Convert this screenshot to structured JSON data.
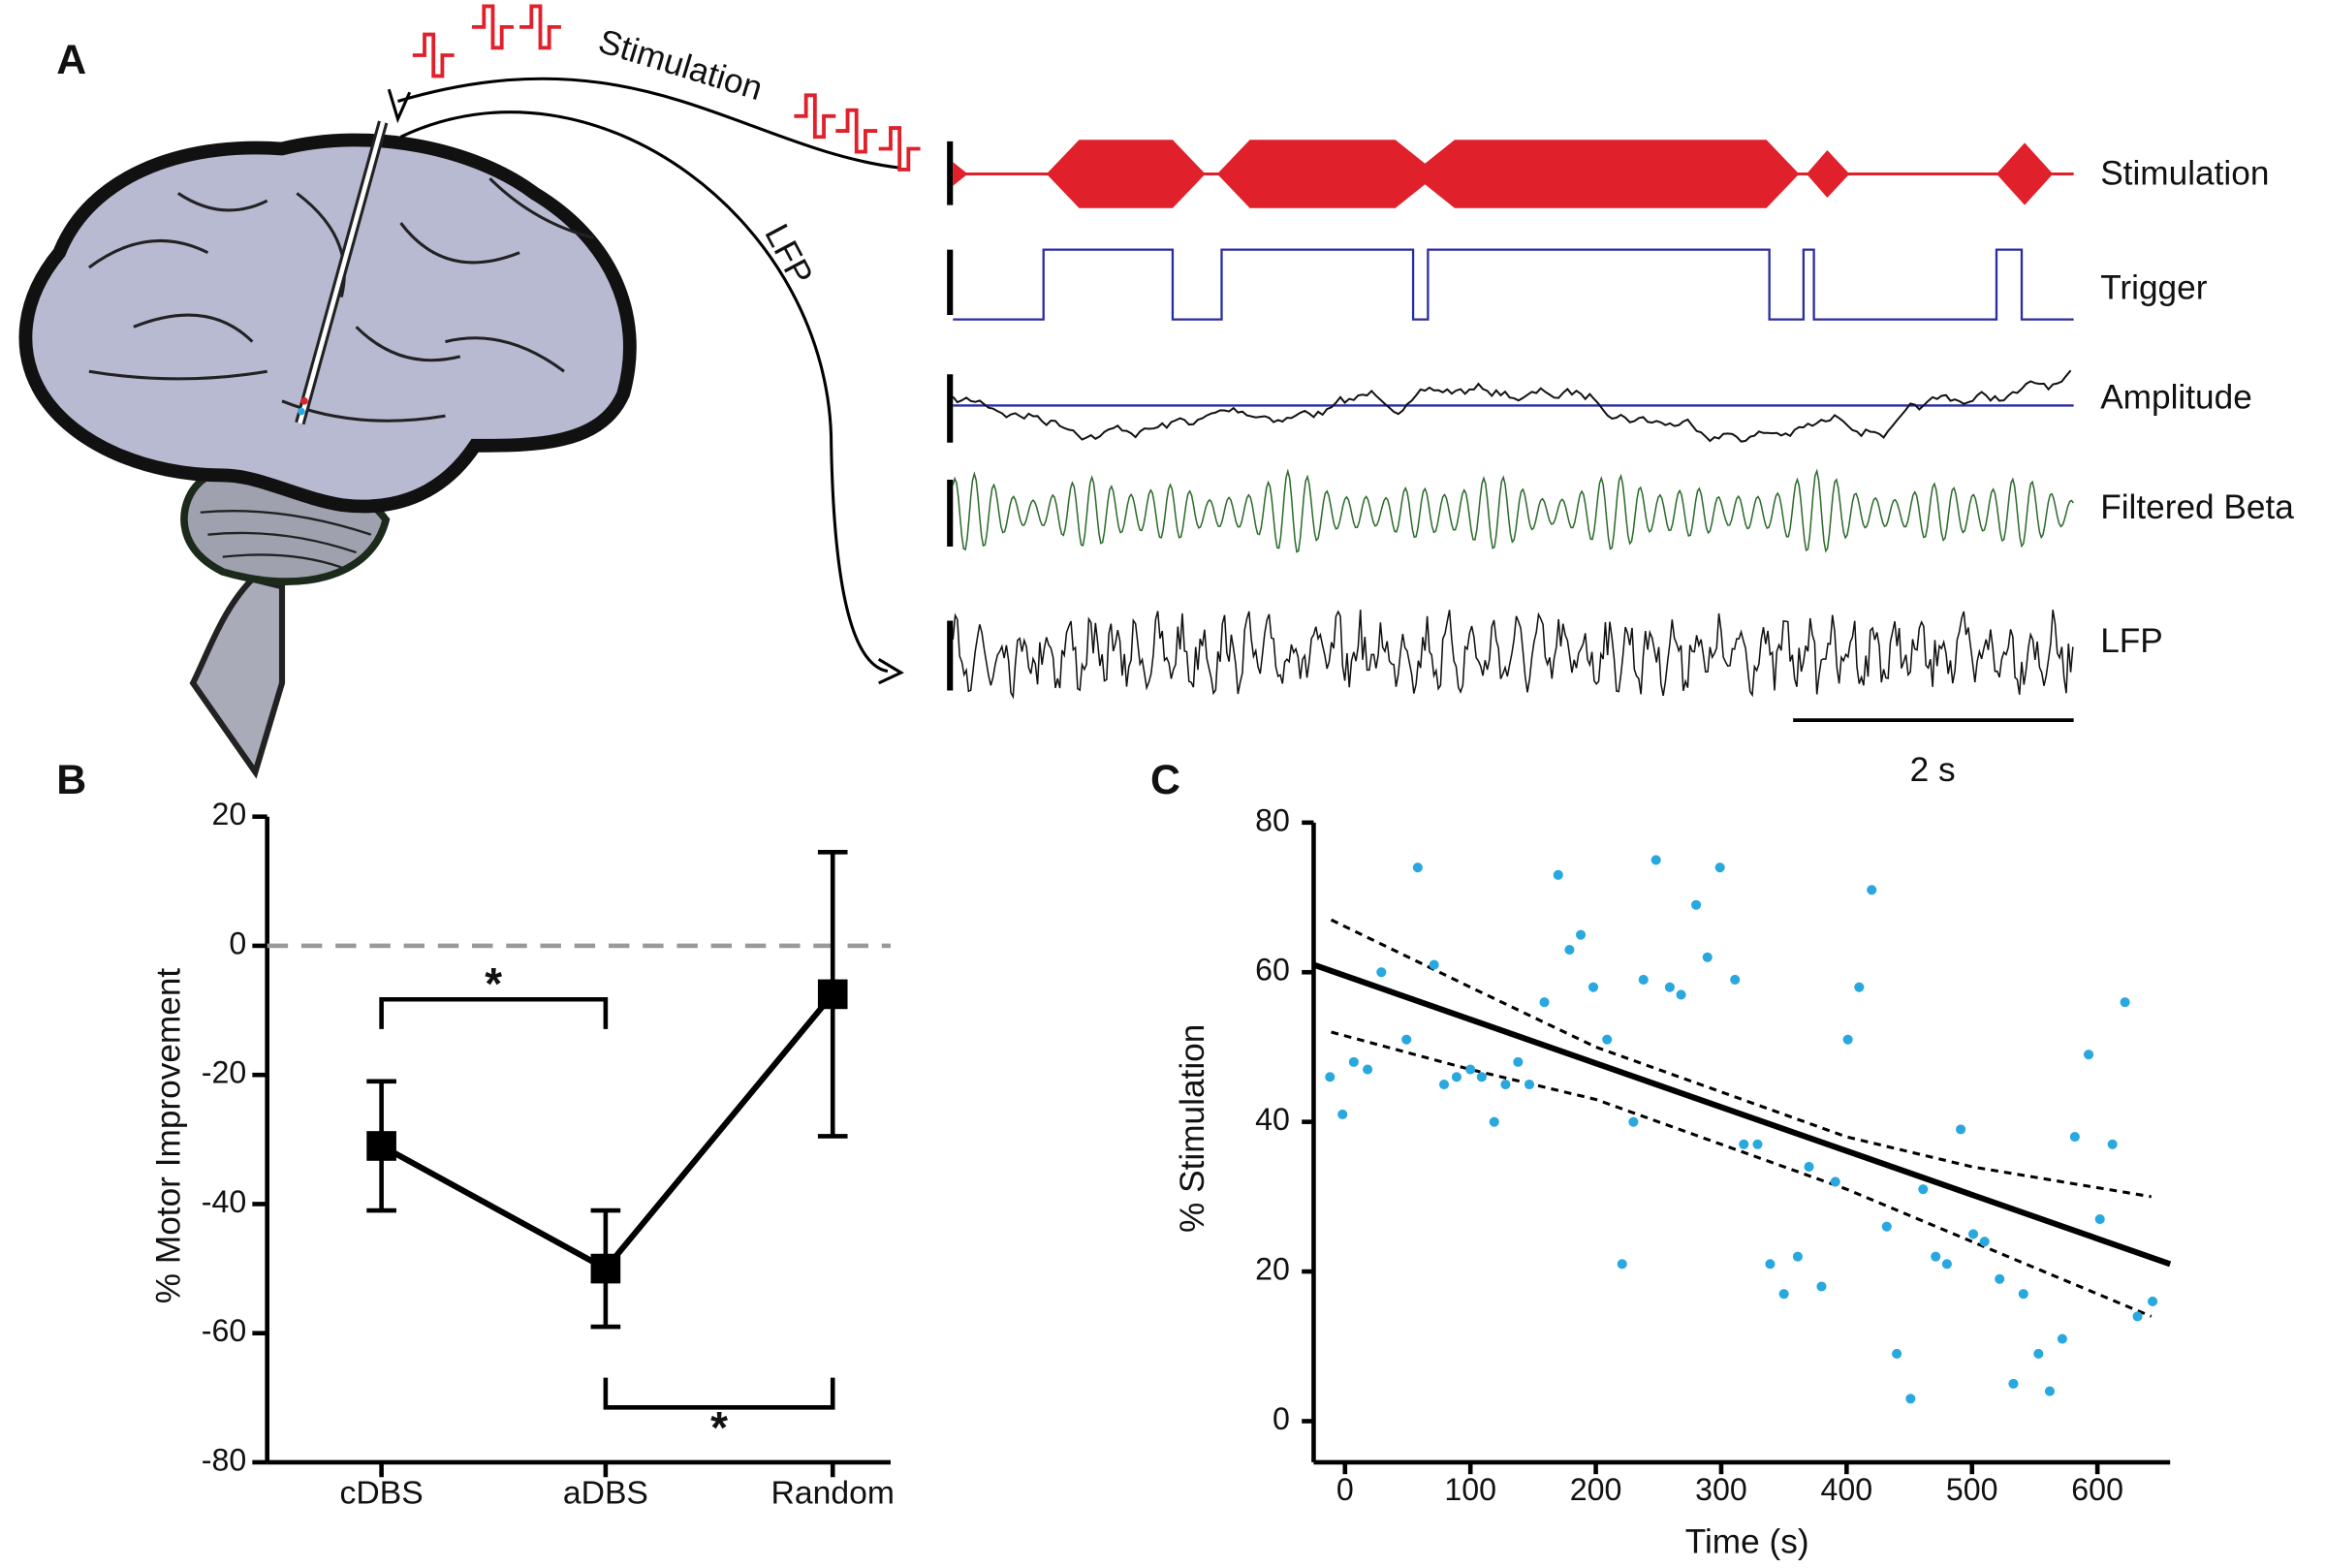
{
  "panel_a": {
    "label": "A",
    "arrows": [
      "Stimulation",
      "LFP"
    ],
    "traces": [
      "Stimulation",
      "Trigger",
      "Amplitude",
      "Filtered Beta",
      "LFP"
    ],
    "scale_bar": "2 s"
  },
  "chart_data": [
    {
      "type": "line",
      "panel": "B",
      "categories": [
        "cDBS",
        "aDBS",
        "Random"
      ],
      "values": [
        -31,
        -50,
        -7.5
      ],
      "errors": [
        10,
        9,
        22
      ],
      "ylabel": "% Motor Improvement",
      "ylim": [
        -80,
        20
      ],
      "yticks": [
        -80,
        -60,
        -40,
        -20,
        0,
        20
      ],
      "color": "#000000",
      "reference_line": 0,
      "annotations": [
        {
          "text": "*",
          "between": [
            0,
            1
          ],
          "y": -8.3
        },
        {
          "text": "*",
          "between": [
            1,
            2
          ],
          "y": -71.5
        }
      ]
    },
    {
      "type": "scatter",
      "panel": "C",
      "xlabel": "Time (s)",
      "ylabel": "% Stimulation",
      "color": "#29a8e0",
      "x": [
        -12,
        -2,
        7,
        18,
        29,
        49,
        58,
        71,
        79,
        89,
        100,
        109,
        119,
        128,
        138,
        147,
        159,
        170,
        179,
        188,
        198,
        209,
        221,
        230,
        238,
        248,
        259,
        268,
        280,
        289,
        299,
        311,
        318,
        329,
        339,
        350,
        361,
        370,
        380,
        391,
        401,
        410,
        420,
        432,
        440,
        451,
        461,
        471,
        480,
        491,
        501,
        510,
        522,
        533,
        541,
        553,
        562,
        572,
        582,
        593,
        602,
        612,
        622,
        632,
        644
      ],
      "values": [
        46,
        41,
        48,
        47,
        60,
        51,
        74,
        61,
        45,
        46,
        47,
        46,
        40,
        45,
        48,
        45,
        56,
        73,
        63,
        65,
        58,
        51,
        21,
        40,
        59,
        75,
        58,
        57,
        69,
        62,
        74,
        59,
        37,
        37,
        21,
        17,
        22,
        34,
        18,
        32,
        51,
        58,
        71,
        26,
        9,
        3,
        31,
        22,
        21,
        39,
        25,
        24,
        19,
        5,
        17,
        9,
        4,
        11,
        38,
        49,
        27,
        37,
        56,
        14,
        16
      ],
      "fit": {
        "x": [
          -25,
          658
        ],
        "y": [
          61,
          21
        ]
      },
      "ci_upper": {
        "x": [
          -11,
          100,
          200,
          300,
          400,
          500,
          643
        ],
        "y": [
          67,
          58,
          50,
          44,
          38,
          34,
          30
        ]
      },
      "ci_lower": {
        "x": [
          -11,
          100,
          200,
          300,
          400,
          500,
          643
        ],
        "y": [
          52,
          47,
          43,
          37,
          31,
          24,
          14
        ]
      },
      "xlim": [
        -25,
        658
      ],
      "xticks": [
        0,
        100,
        200,
        300,
        400,
        500,
        600
      ],
      "ylim": [
        -5.5,
        80
      ],
      "yticks": [
        0,
        20,
        40,
        60,
        80
      ]
    }
  ]
}
